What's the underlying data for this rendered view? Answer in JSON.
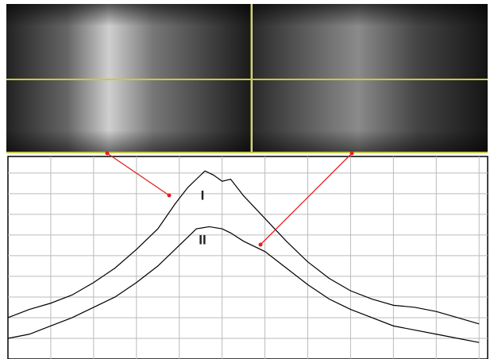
{
  "chart_data": {
    "type": "line",
    "series": [
      {
        "name": "I",
        "color": "#000000",
        "x": [
          0,
          0.5,
          1.0,
          1.5,
          2.0,
          2.5,
          3.0,
          3.5,
          3.9,
          4.2,
          4.4,
          4.6,
          4.8,
          5.0,
          5.2,
          5.5,
          6.0,
          6.5,
          7.0,
          7.5,
          8.0,
          8.5,
          9.0,
          9.5,
          10.0,
          10.5,
          11.0
        ],
        "values": [
          2.0,
          2.4,
          2.7,
          3.1,
          3.7,
          4.4,
          5.3,
          6.3,
          7.5,
          8.3,
          8.7,
          9.1,
          8.9,
          8.6,
          8.7,
          7.9,
          6.8,
          5.7,
          4.7,
          3.9,
          3.3,
          2.9,
          2.6,
          2.5,
          2.3,
          2.0,
          1.7
        ]
      },
      {
        "name": "II",
        "color": "#000000",
        "x": [
          0,
          0.5,
          1.0,
          1.5,
          2.0,
          2.5,
          3.0,
          3.5,
          4.0,
          4.4,
          4.7,
          5.0,
          5.2,
          5.5,
          6.0,
          6.5,
          7.0,
          7.5,
          8.0,
          8.5,
          9.0,
          9.5,
          10.0,
          10.5,
          11.0
        ],
        "values": [
          1.0,
          1.2,
          1.6,
          2.0,
          2.5,
          3.0,
          3.7,
          4.5,
          5.5,
          6.3,
          6.4,
          6.3,
          6.1,
          5.7,
          5.2,
          4.4,
          3.6,
          2.9,
          2.4,
          2.0,
          1.6,
          1.4,
          1.2,
          1.0,
          0.8
        ]
      }
    ],
    "xlim": [
      0,
      11.2
    ],
    "ylim": [
      0,
      9.8
    ],
    "xticks": [
      1,
      2,
      3,
      4,
      5,
      6,
      7,
      8,
      9,
      10,
      11
    ],
    "yticks": [
      1,
      2,
      3,
      4,
      5,
      6,
      7,
      8,
      9
    ],
    "grid": true
  }
}
